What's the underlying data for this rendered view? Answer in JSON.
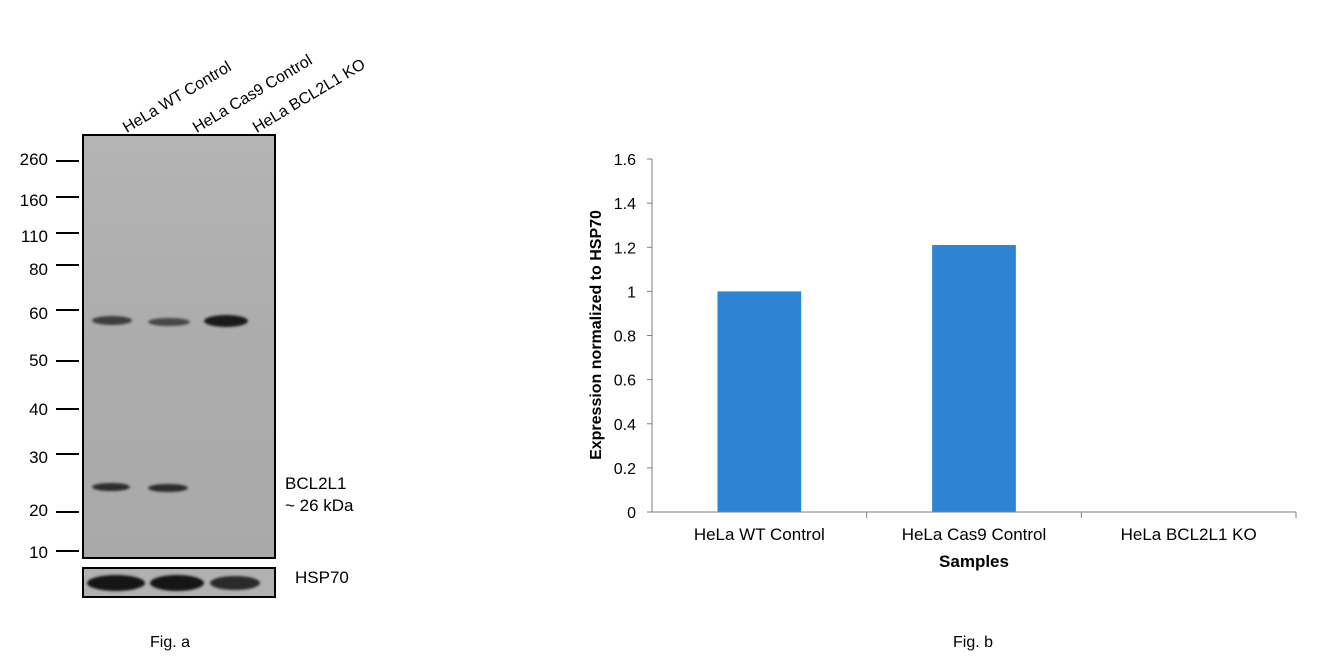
{
  "figure_a": {
    "lane_labels": [
      "HeLa WT Control",
      "HeLa Cas9 Control",
      "HeLa BCL2L1 KO"
    ],
    "mw_markers": [
      "260",
      "160",
      "110",
      "80",
      "60",
      "50",
      "40",
      "30",
      "20",
      "10"
    ],
    "target_label_line1": "BCL2L1",
    "target_label_line2": "~ 26 kDa",
    "loading_control_label": "HSP70",
    "caption": "Fig. a"
  },
  "figure_b": {
    "caption": "Fig. b"
  },
  "chart_data": {
    "type": "bar",
    "categories": [
      "HeLa WT Control",
      "HeLa Cas9 Control",
      "HeLa BCL2L1 KO"
    ],
    "values": [
      1.0,
      1.21,
      0
    ],
    "xlabel": "Samples",
    "ylabel": "Expression normalized to HSP70",
    "ylim": [
      0,
      1.6
    ],
    "yticks": [
      "0",
      "0.2",
      "0.4",
      "0.6",
      "0.8",
      "1",
      "1.2",
      "1.4",
      "1.6"
    ],
    "bar_color": "#2e83d2",
    "grid": false,
    "legend": "none"
  }
}
